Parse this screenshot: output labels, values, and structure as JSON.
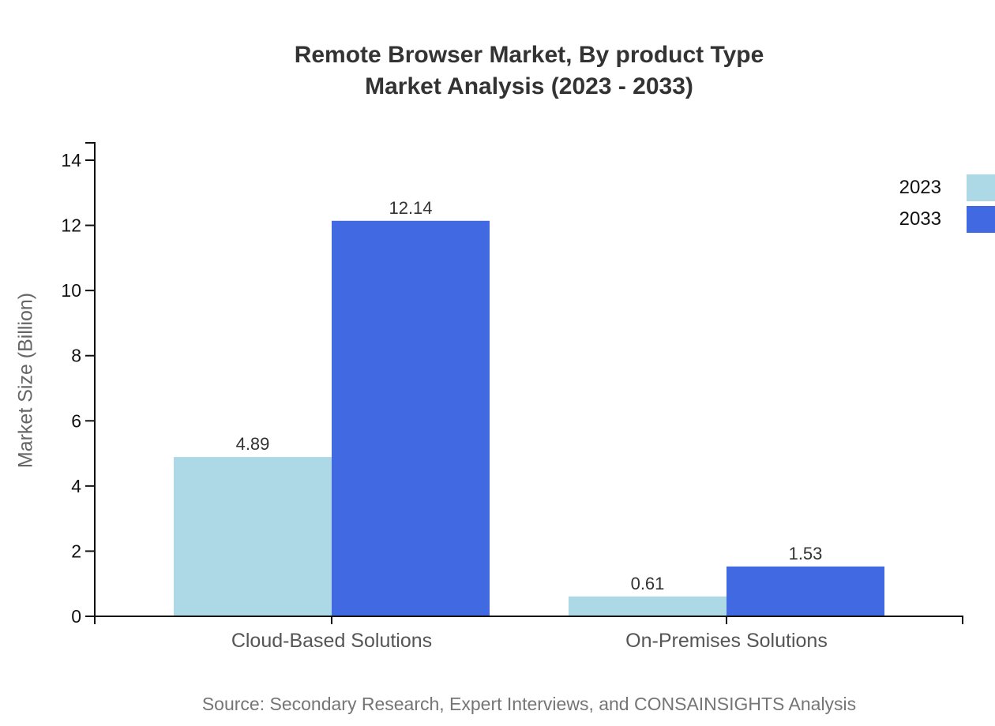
{
  "title": {
    "line1": "Remote Browser Market, By product Type",
    "line2": "Market Analysis (2023 - 2033)"
  },
  "source_note": "Source: Secondary Research, Expert Interviews, and CONSAINSIGHTS Analysis",
  "chart_data": {
    "type": "bar",
    "title": "Remote Browser Market, By product Type Market Analysis (2023 - 2033)",
    "categories": [
      "Cloud-Based Solutions",
      "On-Premises Solutions"
    ],
    "series": [
      {
        "name": "2023",
        "color": "#ADD8E6",
        "values": [
          4.89,
          0.61
        ]
      },
      {
        "name": "2033",
        "color": "#4169E1",
        "values": [
          12.14,
          1.53
        ]
      }
    ],
    "xlabel": "",
    "ylabel": "Market Size (Billion)",
    "ylim": [
      0,
      14
    ],
    "yticks": [
      0,
      2,
      4,
      6,
      8,
      10,
      12,
      14
    ],
    "grid": false,
    "legend_position": "top-right",
    "value_labels": [
      "4.89",
      "12.14",
      "0.61",
      "1.53"
    ]
  },
  "colors": {
    "axis": "#111111",
    "tick_label": "#111111",
    "category_label": "#555555",
    "value_label": "#333333",
    "background": "#ffffff"
  }
}
